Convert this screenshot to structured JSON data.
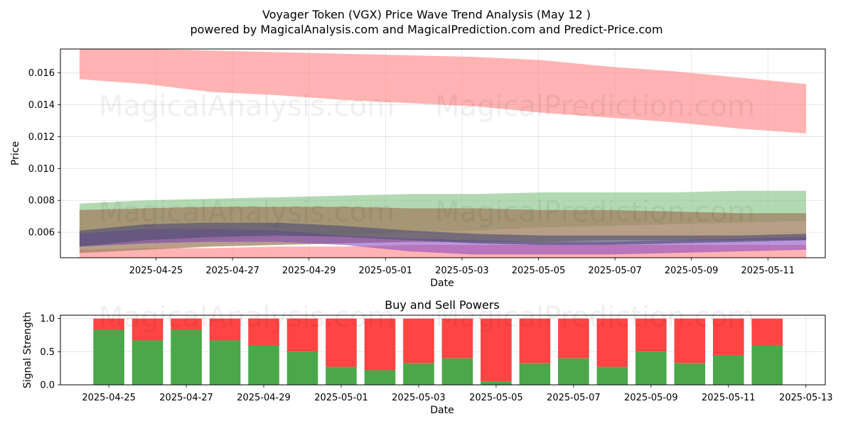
{
  "title_line1": "Voyager Token (VGX) Price Wave Trend Analysis (May 12 )",
  "title_line2": "powered by MagicalAnalysis.com and MagicalPrediction.com and Predict-Price.com",
  "watermarks": [
    "MagicalAnalysis.com",
    "MagicalPrediction.com"
  ],
  "colors": {
    "red_band": "#ff8080",
    "green_band": "#80c080",
    "brown_band": "#a08060",
    "purple_band": "#8040c0",
    "dark_band": "#505070",
    "buy": "#4aa84a",
    "sell": "#ff4444"
  },
  "chart_data": [
    {
      "type": "area",
      "title": "",
      "xlabel": "Date",
      "ylabel": "Price",
      "x_start": "2025-04-23",
      "x_end": "2025-05-12",
      "xlim": [
        "2025-04-22T12:00",
        "2025-05-12T12:00"
      ],
      "ylim": [
        0.0044,
        0.0175
      ],
      "yticks": [
        "0.006",
        "0.008",
        "0.010",
        "0.012",
        "0.014",
        "0.016"
      ],
      "xticks": [
        "2025-04-25",
        "2025-04-27",
        "2025-04-29",
        "2025-05-01",
        "2025-05-03",
        "2025-05-05",
        "2025-05-07",
        "2025-05-09",
        "2025-05-11"
      ],
      "grid": true,
      "bands": [
        {
          "color_key": "red_band",
          "opacity": 0.6,
          "upper": [
            0.0176,
            0.0175,
            0.0174,
            0.0173,
            0.0172,
            0.0171,
            0.017,
            0.0168,
            0.0164,
            0.0161,
            0.0157,
            0.0153
          ],
          "lower": [
            0.0156,
            0.0153,
            0.0148,
            0.0146,
            0.0143,
            0.0141,
            0.0139,
            0.0135,
            0.0132,
            0.0129,
            0.0125,
            0.0122
          ]
        },
        {
          "color_key": "red_band",
          "opacity": 0.6,
          "upper": [
            0.0049,
            0.005,
            0.005,
            0.0051,
            0.0051,
            0.0052,
            0.0052,
            0.0052,
            0.0052,
            0.0052,
            0.0052,
            0.0052
          ],
          "lower": [
            0.0044,
            0.0044,
            0.0044,
            0.0044,
            0.0044,
            0.0044,
            0.0044,
            0.0044,
            0.0044,
            0.0044,
            0.0044,
            0.0044
          ]
        },
        {
          "color_key": "green_band",
          "opacity": 0.6,
          "upper": [
            0.0078,
            0.008,
            0.0081,
            0.0082,
            0.0083,
            0.0084,
            0.0084,
            0.0085,
            0.0085,
            0.0085,
            0.0086,
            0.0086
          ],
          "lower": [
            0.0051,
            0.0053,
            0.0055,
            0.0057,
            0.0058,
            0.006,
            0.0061,
            0.0063,
            0.0064,
            0.0065,
            0.0066,
            0.0067
          ]
        },
        {
          "color_key": "brown_band",
          "opacity": 0.75,
          "upper": [
            0.0074,
            0.0075,
            0.0076,
            0.0076,
            0.0076,
            0.0075,
            0.0075,
            0.0074,
            0.0074,
            0.0073,
            0.0072,
            0.0072
          ],
          "lower": [
            0.0047,
            0.0049,
            0.0051,
            0.0052,
            0.0053,
            0.0054,
            0.0054,
            0.0054,
            0.0055,
            0.0055,
            0.0055,
            0.0055
          ]
        },
        {
          "color_key": "purple_band",
          "opacity": 0.55,
          "upper": [
            0.0059,
            0.0062,
            0.0062,
            0.0061,
            0.0058,
            0.0056,
            0.0055,
            0.0054,
            0.0054,
            0.0055,
            0.0056,
            0.0057
          ],
          "lower": [
            0.0051,
            0.0053,
            0.0054,
            0.0054,
            0.0052,
            0.0048,
            0.0046,
            0.0046,
            0.0046,
            0.0047,
            0.0048,
            0.0049
          ]
        },
        {
          "color_key": "dark_band",
          "opacity": 0.65,
          "upper": [
            0.0061,
            0.0065,
            0.0066,
            0.0066,
            0.0064,
            0.0061,
            0.0059,
            0.0058,
            0.0058,
            0.0058,
            0.0058,
            0.0059
          ],
          "lower": [
            0.0051,
            0.0055,
            0.0057,
            0.0058,
            0.0057,
            0.0055,
            0.0053,
            0.0052,
            0.0052,
            0.0053,
            0.0054,
            0.0055
          ]
        }
      ]
    },
    {
      "type": "bar",
      "title": "Buy and Sell Powers",
      "xlabel": "Date",
      "ylabel": "Signal Strength",
      "xlim": [
        "2025-04-23T18:00",
        "2025-05-13T12:00"
      ],
      "ylim": [
        0,
        1.05
      ],
      "yticks": [
        "0.0",
        "0.5",
        "1.0"
      ],
      "xticks": [
        "2025-04-25",
        "2025-04-27",
        "2025-04-29",
        "2025-05-01",
        "2025-05-03",
        "2025-05-05",
        "2025-05-07",
        "2025-05-09",
        "2025-05-11",
        "2025-05-13"
      ],
      "grid": true,
      "categories": [
        "2025-04-25",
        "2025-04-26",
        "2025-04-27",
        "2025-04-28",
        "2025-04-29",
        "2025-04-30",
        "2025-05-01",
        "2025-05-02",
        "2025-05-03",
        "2025-05-04",
        "2025-05-05",
        "2025-05-06",
        "2025-05-07",
        "2025-05-08",
        "2025-05-09",
        "2025-05-10",
        "2025-05-11",
        "2025-05-12"
      ],
      "buy": [
        0.83,
        0.67,
        0.83,
        0.67,
        0.6,
        0.5,
        0.27,
        0.22,
        0.33,
        0.4,
        0.05,
        0.33,
        0.4,
        0.27,
        0.5,
        0.33,
        0.45,
        0.6
      ],
      "sell_total": 1.0
    }
  ]
}
